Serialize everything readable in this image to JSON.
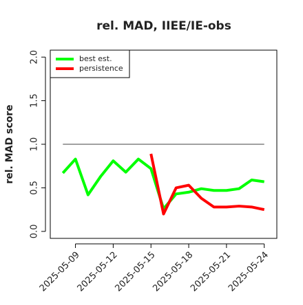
{
  "chart_data": {
    "type": "line",
    "title": "rel. MAD, IIEE/IE-obs",
    "y_label": "rel. MAD score",
    "x": [
      "2025-05-08",
      "2025-05-09",
      "2025-05-10",
      "2025-05-11",
      "2025-05-12",
      "2025-05-13",
      "2025-05-14",
      "2025-05-15",
      "2025-05-16",
      "2025-05-17",
      "2025-05-18",
      "2025-05-19",
      "2025-05-20",
      "2025-05-21",
      "2025-05-22",
      "2025-05-23",
      "2025-05-24"
    ],
    "series": [
      {
        "name": "best est.",
        "color": "#00ff00",
        "values": [
          0.67,
          0.83,
          0.42,
          0.63,
          0.81,
          0.68,
          0.83,
          0.72,
          0.26,
          0.43,
          0.45,
          0.49,
          0.47,
          0.47,
          0.49,
          0.59,
          0.57
        ]
      },
      {
        "name": "persistence",
        "color": "#ff0000",
        "values": [
          null,
          null,
          null,
          null,
          null,
          null,
          null,
          0.89,
          0.2,
          0.5,
          0.53,
          0.38,
          0.28,
          0.28,
          0.29,
          0.28,
          0.25
        ]
      }
    ],
    "reference": 1.0,
    "reference_color": "#808080",
    "xlim": [
      "2025-05-07",
      "2025-05-25"
    ],
    "xticks": [
      "2025-05-09",
      "2025-05-12",
      "2025-05-15",
      "2025-05-18",
      "2025-05-21",
      "2025-05-24"
    ],
    "ylim": [
      -0.08,
      2.08
    ],
    "yticks": [
      {
        "value": 0,
        "label": "0.0"
      },
      {
        "value": 0.5,
        "label": "0.5"
      },
      {
        "value": 1,
        "label": "1.0"
      },
      {
        "value": 1.5,
        "label": "1.5"
      },
      {
        "value": 2,
        "label": "2.0"
      }
    ],
    "legend": "top-left"
  }
}
